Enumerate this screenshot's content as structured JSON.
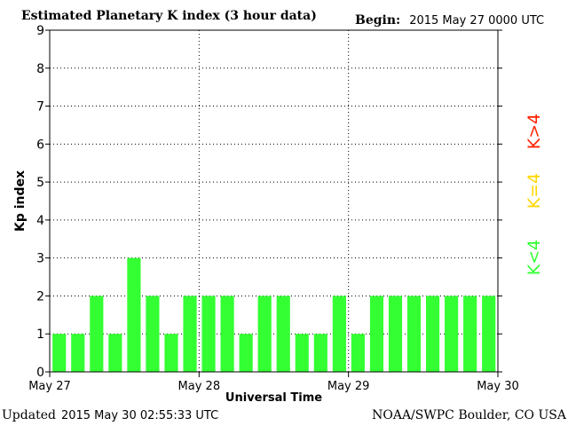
{
  "header": {
    "title": "Estimated Planetary K index (3 hour data)",
    "begin_label": "Begin:",
    "begin_value": "2015 May 27 0000 UTC"
  },
  "footer": {
    "updated_label": "Updated",
    "updated_value": "2015 May 30 02:55:33 UTC",
    "source": "NOAA/SWPC Boulder, CO USA"
  },
  "colors": {
    "bar": "#33ff33",
    "k_less": "#33ff33",
    "k_equal": "#ffd700",
    "k_greater": "#ff2200",
    "axis": "#000000"
  },
  "chart_data": {
    "type": "bar",
    "ylabel": "Kp index",
    "xlabel": "Universal Time",
    "ylim": [
      0,
      9
    ],
    "yticks": [
      0,
      1,
      2,
      3,
      4,
      5,
      6,
      7,
      8,
      9
    ],
    "xticks": [
      "May 27",
      "May 28",
      "May 29",
      "May 30"
    ],
    "grid": "dotted",
    "values": [
      1,
      1,
      2,
      1,
      3,
      2,
      1,
      2,
      2,
      2,
      1,
      2,
      2,
      1,
      1,
      2,
      1,
      2,
      2,
      2,
      2,
      2,
      2,
      2
    ],
    "legend": [
      "K<4",
      "K=4",
      "K>4"
    ]
  }
}
